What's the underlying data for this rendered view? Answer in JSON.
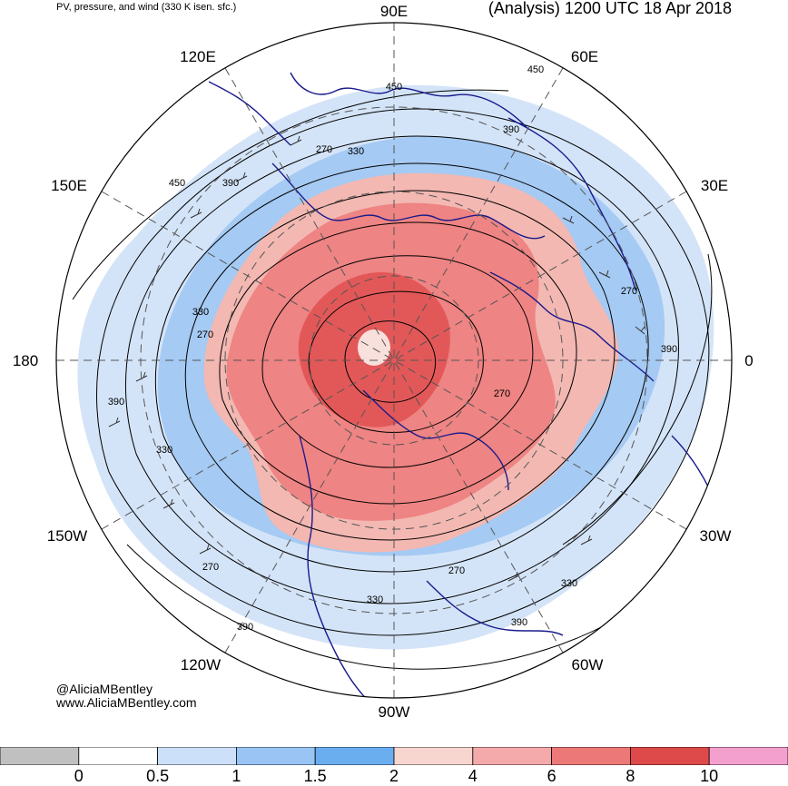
{
  "header": {
    "subtitle": "PV, pressure, and wind (330 K isen. sfc.)",
    "title": "(Analysis) 1200 UTC 18 Apr 2018"
  },
  "map": {
    "projection": "north-polar-stereographic",
    "longitude_labels": [
      "90E",
      "60E",
      "30E",
      "0",
      "30W",
      "60W",
      "90W",
      "120W",
      "150W",
      "180",
      "150E",
      "120E"
    ],
    "contour_labels": [
      "450",
      "450",
      "390",
      "270",
      "330",
      "390",
      "450",
      "330",
      "270",
      "270",
      "390",
      "270",
      "390",
      "330",
      "270",
      "330",
      "330",
      "390",
      "270",
      "390"
    ],
    "colors": {
      "coast": "#1a1a8c",
      "contour": "#000000",
      "grid": "#555555"
    }
  },
  "credits": {
    "twitter": "@AliciaMBentley",
    "website": "www.AliciaMBentley.com"
  },
  "legend": {
    "labels": [
      "0",
      "0.5",
      "1",
      "1.5",
      "2",
      "4",
      "6",
      "8",
      "10"
    ],
    "colors": [
      "#c0c0c0",
      "#ffffff",
      "#cce0fa",
      "#99c4f4",
      "#6aaef0",
      "#f8d6d0",
      "#f4aaaa",
      "#ec7878",
      "#de4a4a",
      "#f3a0cf"
    ]
  }
}
